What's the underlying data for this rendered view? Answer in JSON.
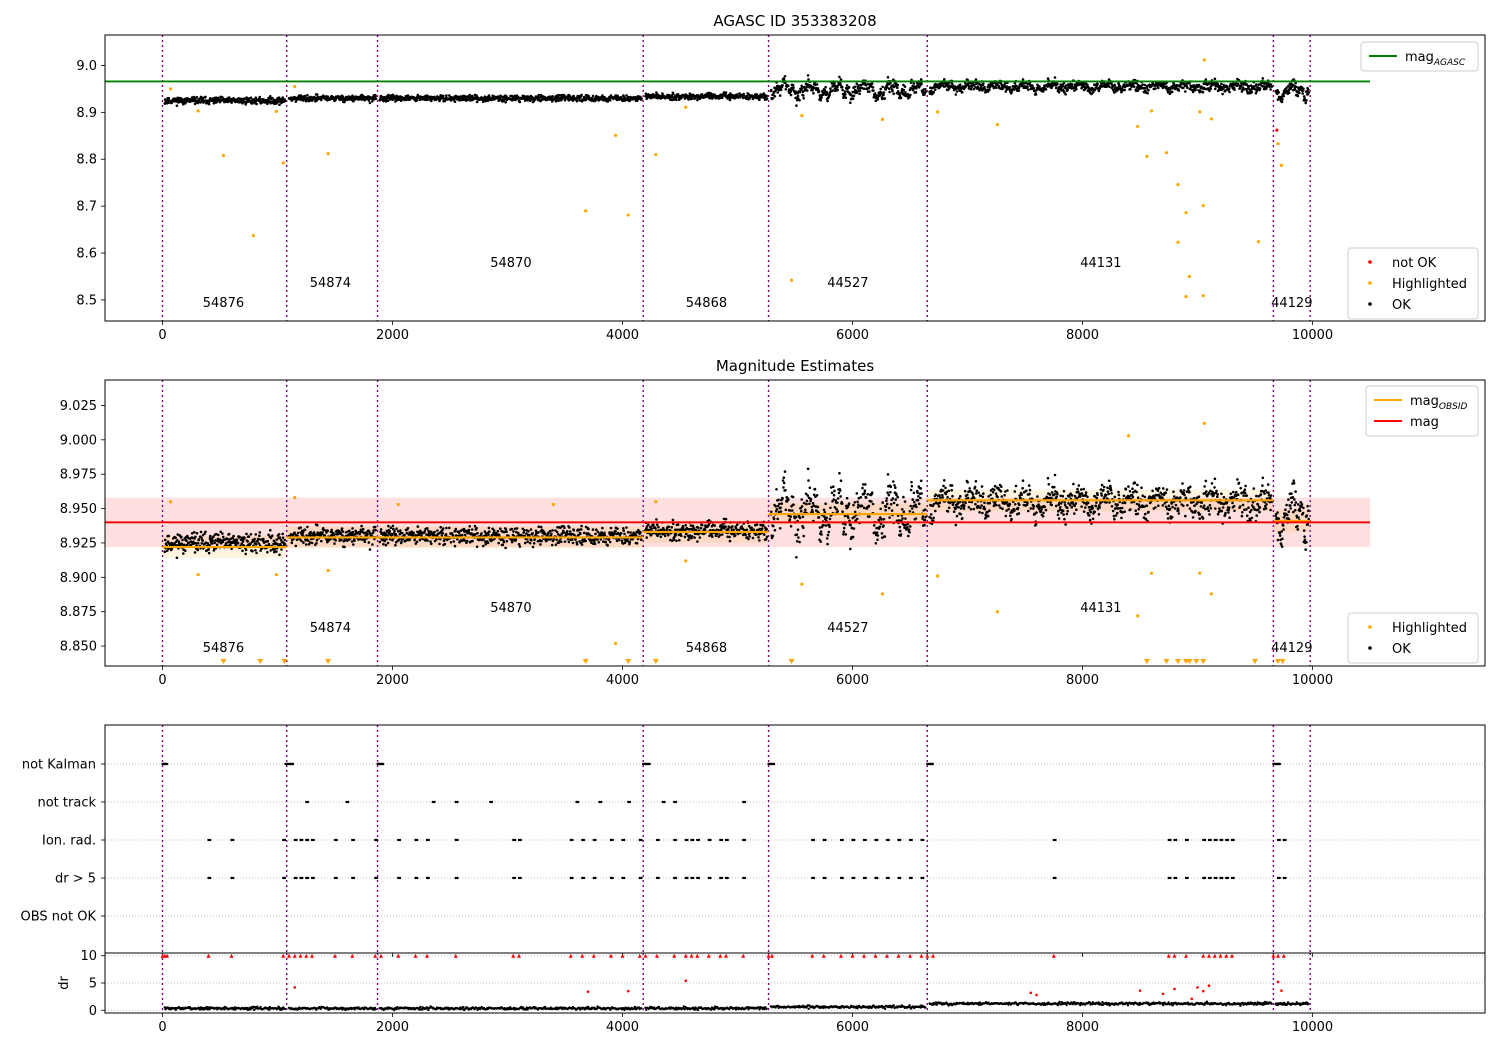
{
  "chart_data": [
    {
      "type": "scatter",
      "title": "AGASC ID 353383208",
      "xlim": [
        -500,
        11500
      ],
      "ylim": [
        8.455,
        9.065
      ],
      "xticks": [
        0,
        2000,
        4000,
        6000,
        8000,
        10000
      ],
      "yticks": [
        8.5,
        8.6,
        8.7,
        8.8,
        8.9,
        9.0
      ],
      "ytick_labels": [
        "8.5",
        "8.6",
        "8.7",
        "8.8",
        "8.9",
        "9.0"
      ],
      "hline": {
        "name": "mag",
        "sub": "AGASC",
        "y": 8.966,
        "x": [
          -500,
          10500
        ],
        "color": "#008000"
      },
      "legend_top": [
        {
          "label": "mag",
          "sub": "AGASC",
          "kind": "line",
          "color": "#008000"
        }
      ],
      "legend_bottom": [
        {
          "label": "not OK",
          "kind": "dot",
          "color": "#ff0000"
        },
        {
          "label": "Highlighted",
          "kind": "dot",
          "color": "#ffa500"
        },
        {
          "label": "OK",
          "kind": "dot",
          "color": "#000000"
        }
      ],
      "highlighted": [
        [
          70,
          8.95
        ],
        [
          310,
          8.903
        ],
        [
          530,
          8.808
        ],
        [
          790,
          8.637
        ],
        [
          990,
          8.902
        ],
        [
          1050,
          8.792
        ],
        [
          1150,
          8.955
        ],
        [
          1440,
          8.812
        ],
        [
          3680,
          8.69
        ],
        [
          3940,
          8.851
        ],
        [
          4050,
          8.681
        ],
        [
          4290,
          8.81
        ],
        [
          4550,
          8.911
        ],
        [
          5470,
          8.542
        ],
        [
          5560,
          8.893
        ],
        [
          6260,
          8.885
        ],
        [
          6740,
          8.901
        ],
        [
          7260,
          8.874
        ],
        [
          8480,
          8.87
        ],
        [
          8560,
          8.806
        ],
        [
          8600,
          8.903
        ],
        [
          8730,
          8.814
        ],
        [
          8830,
          8.746
        ],
        [
          8830,
          8.623
        ],
        [
          8900,
          8.686
        ],
        [
          8930,
          8.55
        ],
        [
          8900,
          8.507
        ],
        [
          9020,
          8.901
        ],
        [
          9050,
          8.701
        ],
        [
          9050,
          8.509
        ],
        [
          9060,
          9.012
        ],
        [
          9120,
          8.886
        ],
        [
          9530,
          8.624
        ],
        [
          9700,
          8.833
        ],
        [
          9730,
          8.787
        ]
      ],
      "not_ok": [
        [
          9690,
          8.862
        ]
      ]
    },
    {
      "type": "scatter",
      "title": "Magnitude Estimates",
      "xlim": [
        -500,
        11500
      ],
      "ylim": [
        8.8355,
        9.0435
      ],
      "xticks": [
        0,
        2000,
        4000,
        6000,
        8000,
        10000
      ],
      "yticks": [
        8.85,
        8.875,
        8.9,
        8.925,
        8.95,
        8.975,
        9.0,
        9.025
      ],
      "ytick_labels": [
        "8.850",
        "8.875",
        "8.900",
        "8.925",
        "8.950",
        "8.975",
        "9.000",
        "9.025"
      ],
      "mag_line": {
        "name": "mag",
        "y": 8.94,
        "band": [
          8.922,
          8.958
        ],
        "x": [
          -500,
          10500
        ],
        "color": "#ff0000"
      },
      "obsid_levels": [
        {
          "obsid": "54876",
          "x": [
            0,
            1080
          ],
          "mag": 8.922
        },
        {
          "obsid": "54874",
          "x": [
            1080,
            1870
          ],
          "mag": 8.929
        },
        {
          "obsid": "54870",
          "x": [
            1870,
            4180
          ],
          "mag": 8.929
        },
        {
          "obsid": "54868",
          "x": [
            4180,
            5270
          ],
          "mag": 8.933
        },
        {
          "obsid": "44527",
          "x": [
            5270,
            6650
          ],
          "mag": 8.946
        },
        {
          "obsid": "44131",
          "x": [
            6650,
            9660
          ],
          "mag": 8.956
        },
        {
          "obsid": "44129",
          "x": [
            9660,
            9980
          ],
          "mag": 8.941
        }
      ],
      "legend_top": [
        {
          "label": "mag",
          "sub": "OBSID",
          "kind": "line",
          "color": "#ffa500"
        },
        {
          "label": "mag",
          "sub": "",
          "kind": "line",
          "color": "#ff0000"
        }
      ],
      "legend_bottom": [
        {
          "label": "Highlighted",
          "kind": "dot",
          "color": "#ffa500"
        },
        {
          "label": "OK",
          "kind": "dot",
          "color": "#000000"
        }
      ],
      "highlighted": [
        [
          70,
          8.955
        ],
        [
          310,
          8.902
        ],
        [
          990,
          8.902
        ],
        [
          1150,
          8.958
        ],
        [
          1440,
          8.905
        ],
        [
          2050,
          8.953
        ],
        [
          3400,
          8.953
        ],
        [
          3940,
          8.852
        ],
        [
          4290,
          8.955
        ],
        [
          4550,
          8.912
        ],
        [
          5560,
          8.895
        ],
        [
          6260,
          8.888
        ],
        [
          6740,
          8.901
        ],
        [
          7260,
          8.875
        ],
        [
          8480,
          8.872
        ],
        [
          8600,
          8.903
        ],
        [
          9020,
          8.903
        ],
        [
          9060,
          9.012
        ],
        [
          9120,
          8.888
        ],
        [
          8400,
          9.003
        ]
      ],
      "below_range": [
        530,
        850,
        1060,
        1440,
        3680,
        4050,
        4290,
        5470,
        8560,
        8730,
        8830,
        8900,
        8930,
        8990,
        9050,
        9500,
        9700,
        9740
      ]
    },
    {
      "type": "scatter",
      "title": "",
      "xlim": [
        -500,
        11500
      ],
      "xticks": [
        0,
        2000,
        4000,
        6000,
        8000,
        10000
      ],
      "categories": [
        "not Kalman",
        "not track",
        "Ion. rad.",
        "dr > 5",
        "OBS not OK"
      ],
      "flags": {
        "not Kalman": [
          [
            0,
            40
          ],
          [
            1070,
            1140
          ],
          [
            1870,
            1920
          ],
          [
            4180,
            4240
          ],
          [
            5270,
            5320
          ],
          [
            6650,
            6700
          ],
          [
            9660,
            9720
          ]
        ],
        "not track": [
          1250,
          1600,
          2350,
          2550,
          2850,
          3600,
          3800,
          4050,
          4350,
          4450,
          5050
        ],
        "Ion. rad.": [
          400,
          600,
          1050,
          1150,
          1200,
          1250,
          1300,
          1500,
          1650,
          1850,
          2050,
          2200,
          2300,
          2550,
          3050,
          3100,
          3550,
          3650,
          3750,
          3900,
          4000,
          4150,
          4300,
          4450,
          4550,
          4600,
          4650,
          4750,
          4850,
          4900,
          5050,
          5650,
          5750,
          5900,
          6000,
          6100,
          6200,
          6300,
          6400,
          6500,
          6600,
          7750,
          8750,
          8800,
          8900,
          9050,
          9100,
          9150,
          9200,
          9250,
          9300,
          9700,
          9750
        ],
        "dr > 5": [
          400,
          600,
          1050,
          1150,
          1200,
          1250,
          1300,
          1500,
          1650,
          1850,
          2050,
          2200,
          2300,
          2550,
          3050,
          3100,
          3550,
          3650,
          3750,
          3900,
          4000,
          4150,
          4300,
          4450,
          4550,
          4600,
          4650,
          4750,
          4850,
          4900,
          5050,
          5650,
          5750,
          5900,
          6000,
          6100,
          6200,
          6300,
          6400,
          6500,
          6600,
          7750,
          8750,
          8800,
          8900,
          9050,
          9100,
          9150,
          9200,
          9250,
          9300,
          9700,
          9750
        ],
        "OBS not OK": []
      }
    },
    {
      "type": "scatter",
      "title": "",
      "ylabel": "dr",
      "xlim": [
        -500,
        11500
      ],
      "ylim": [
        -0.5,
        10.5
      ],
      "yticks": [
        0,
        5,
        10
      ],
      "ytick_labels": [
        "0",
        "5",
        "10"
      ],
      "xticks": [
        0,
        2000,
        4000,
        6000,
        8000,
        10000
      ],
      "xtick_labels": [
        "0",
        "2000",
        "4000",
        "6000",
        "8000",
        "10000"
      ],
      "red_capped_x": [
        0,
        20,
        40,
        400,
        600,
        1050,
        1100,
        1150,
        1200,
        1250,
        1300,
        1500,
        1650,
        1850,
        1900,
        2050,
        2200,
        2300,
        2550,
        3050,
        3100,
        3550,
        3650,
        3750,
        3900,
        4000,
        4150,
        4200,
        4300,
        4450,
        4550,
        4600,
        4650,
        4750,
        4850,
        4900,
        5050,
        5270,
        5300,
        5650,
        5750,
        5900,
        6000,
        6100,
        6200,
        6300,
        6400,
        6500,
        6600,
        6650,
        6700,
        7750,
        8750,
        8800,
        8900,
        9050,
        9100,
        9150,
        9200,
        9250,
        9300,
        9660,
        9700,
        9750
      ],
      "red_points": [
        [
          1150,
          4.2
        ],
        [
          3700,
          3.4
        ],
        [
          4050,
          3.5
        ],
        [
          4550,
          5.4
        ],
        [
          7550,
          3.2
        ],
        [
          7600,
          2.8
        ],
        [
          8500,
          3.6
        ],
        [
          8700,
          3.0
        ],
        [
          8800,
          3.9
        ],
        [
          8950,
          2.1
        ],
        [
          9000,
          4.2
        ],
        [
          9050,
          3.5
        ],
        [
          9100,
          4.5
        ],
        [
          9700,
          5.2
        ],
        [
          9730,
          3.6
        ]
      ]
    }
  ],
  "segments": [
    {
      "obsid": "54876",
      "start": 0,
      "end": 1080,
      "label_x": 530,
      "label_row": 2
    },
    {
      "obsid": "54874",
      "start": 1080,
      "end": 1870,
      "label_x": 1460,
      "label_row": 1
    },
    {
      "obsid": "54870",
      "start": 1870,
      "end": 4180,
      "label_x": 3030,
      "label_row": 0
    },
    {
      "obsid": "54868",
      "start": 4180,
      "end": 5270,
      "label_x": 4730,
      "label_row": 2
    },
    {
      "obsid": "44527",
      "start": 5270,
      "end": 6650,
      "label_x": 5960,
      "label_row": 1
    },
    {
      "obsid": "44131",
      "start": 6650,
      "end": 9660,
      "label_x": 8160,
      "label_row": 0
    },
    {
      "obsid": "44129",
      "start": 9660,
      "end": 9980,
      "label_x": 9820,
      "label_row": 2
    }
  ]
}
